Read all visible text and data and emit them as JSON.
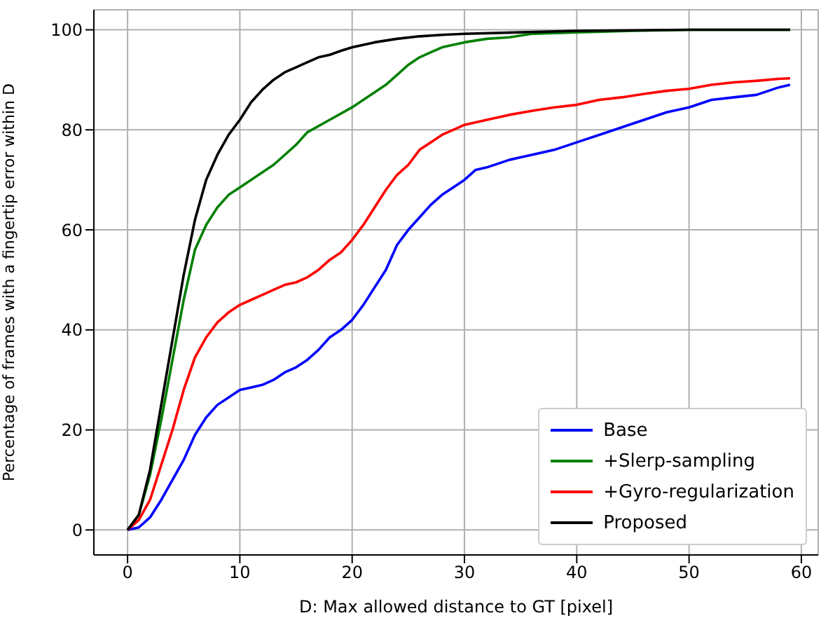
{
  "chart_data": {
    "type": "line",
    "xlabel": "D: Max allowed distance to GT [pixel]",
    "ylabel": "Percentage of frames with a fingertip error within  D",
    "xlim": [
      -3,
      61.5
    ],
    "ylim": [
      -5,
      104
    ],
    "xticks": [
      0,
      10,
      20,
      30,
      40,
      50,
      60
    ],
    "yticks": [
      0,
      20,
      40,
      60,
      80,
      100
    ],
    "grid": true,
    "legend": "bottom right",
    "marker": "none",
    "line_style": "solid",
    "series": [
      {
        "name": "Base",
        "color": "#0000ff",
        "x": [
          0,
          1,
          2,
          3,
          4,
          5,
          6,
          7,
          8,
          9,
          10,
          11,
          12,
          13,
          14,
          15,
          16,
          17,
          18,
          19,
          20,
          21,
          22,
          23,
          24,
          25,
          26,
          27,
          28,
          29,
          30,
          31,
          32,
          34,
          35,
          36,
          38,
          40,
          42,
          44,
          46,
          48,
          50,
          52,
          54,
          56,
          58,
          59
        ],
        "values": [
          0,
          0.5,
          2.5,
          6,
          10,
          14,
          19,
          22.5,
          25,
          26.5,
          28,
          28.5,
          29,
          30,
          31.5,
          32.5,
          34,
          36,
          38.5,
          40,
          42,
          45,
          48.5,
          52,
          57,
          60,
          62.5,
          65,
          67,
          68.5,
          70,
          72,
          72.5,
          74,
          74.5,
          75,
          76,
          77.5,
          79,
          80.5,
          82,
          83.5,
          84.5,
          86,
          86.5,
          87,
          88.5,
          89
        ]
      },
      {
        "name": "+Slerp-sampling",
        "color": "#008000",
        "x": [
          0,
          1,
          2,
          3,
          4,
          5,
          6,
          7,
          8,
          9,
          10,
          11,
          12,
          13,
          14,
          15,
          16,
          18,
          20,
          22,
          23,
          24,
          25,
          26,
          27,
          28,
          30,
          32,
          34,
          36,
          40,
          45,
          50,
          59
        ],
        "values": [
          0,
          3,
          11,
          22,
          34,
          46,
          56,
          61,
          64.5,
          67,
          68.5,
          70,
          71.5,
          73,
          75,
          77,
          79.5,
          82,
          84.5,
          87.5,
          89,
          91,
          93,
          94.5,
          95.5,
          96.5,
          97.5,
          98.2,
          98.5,
          99.2,
          99.5,
          99.8,
          100,
          100
        ]
      },
      {
        "name": "+Gyro-regularization",
        "color": "#ff0000",
        "x": [
          0,
          1,
          2,
          3,
          4,
          5,
          6,
          7,
          8,
          9,
          10,
          11,
          12,
          13,
          14,
          15,
          16,
          17,
          18,
          19,
          20,
          21,
          22,
          23,
          24,
          25,
          26,
          27,
          28,
          29,
          30,
          32,
          34,
          36,
          38,
          40,
          42,
          44,
          46,
          48,
          50,
          52,
          54,
          56,
          58,
          59
        ],
        "values": [
          0,
          2,
          6,
          13,
          20,
          28,
          34.5,
          38.5,
          41.5,
          43.5,
          45,
          46,
          47,
          48,
          49,
          49.5,
          50.5,
          52,
          54,
          55.5,
          58,
          61,
          64.5,
          68,
          71,
          73,
          76,
          77.5,
          79,
          80,
          81,
          82,
          83,
          83.8,
          84.5,
          85,
          86,
          86.5,
          87.2,
          87.8,
          88.2,
          89,
          89.5,
          89.8,
          90.2,
          90.3
        ]
      },
      {
        "name": "Proposed",
        "color": "#000000",
        "x": [
          0,
          1,
          2,
          3,
          4,
          5,
          6,
          7,
          8,
          9,
          10,
          11,
          12,
          13,
          14,
          15,
          16,
          17,
          18,
          19,
          20,
          22,
          24,
          26,
          28,
          30,
          35,
          40,
          50,
          59
        ],
        "values": [
          0,
          3,
          12,
          25,
          38,
          51,
          62,
          70,
          75,
          79,
          82,
          85.5,
          88,
          90,
          91.5,
          92.5,
          93.5,
          94.5,
          95,
          95.8,
          96.5,
          97.5,
          98.2,
          98.7,
          99,
          99.2,
          99.5,
          99.8,
          100,
          100
        ]
      }
    ]
  }
}
